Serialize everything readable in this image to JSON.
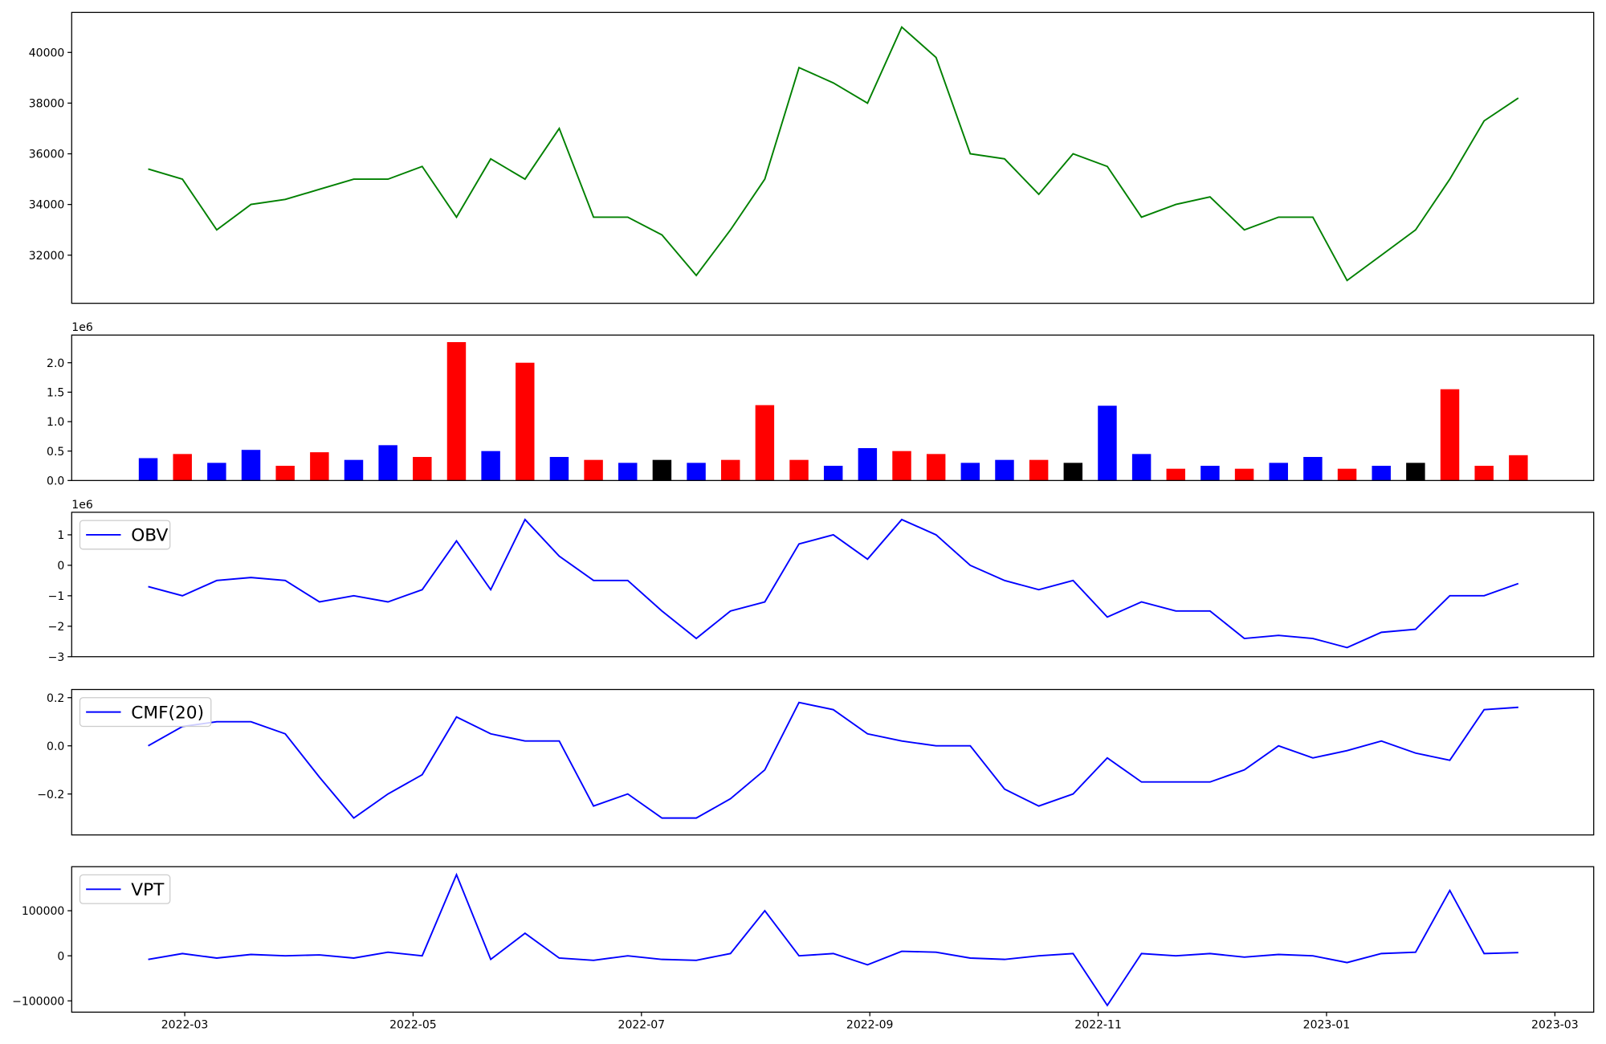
{
  "chart_data": [
    {
      "type": "line",
      "xlim": [
        1.01,
        14.34
      ],
      "ylim": [
        30100,
        41580
      ],
      "yticks": [
        32000,
        34000,
        36000,
        38000,
        40000
      ],
      "x": [
        1.68,
        1.98,
        2.28,
        2.58,
        2.88,
        3.18,
        3.48,
        3.78,
        4.08,
        4.38,
        4.68,
        4.98,
        5.28,
        5.58,
        5.88,
        6.18,
        6.48,
        6.78,
        7.08,
        7.38,
        7.68,
        7.98,
        8.28,
        8.58,
        8.88,
        9.18,
        9.48,
        9.78,
        10.08,
        10.38,
        10.68,
        10.98,
        11.28,
        11.58,
        11.88,
        12.18,
        12.48,
        12.78,
        13.08,
        13.38,
        13.68
      ],
      "series": [
        {
          "color": "green",
          "values": [
            35400,
            35000,
            33000,
            34000,
            34200,
            34600,
            35000,
            35000,
            35500,
            33500,
            35800,
            35000,
            37000,
            33500,
            33500,
            32800,
            31200,
            33000,
            35000,
            39400,
            38800,
            38000,
            41000,
            39800,
            36000,
            35800,
            34400,
            36000,
            35500,
            33500,
            34000,
            34300,
            33000,
            33500,
            33500,
            31000,
            32000,
            33000,
            35000,
            37300,
            38200
          ]
        }
      ]
    },
    {
      "type": "bar",
      "xlim": [
        1.01,
        14.34
      ],
      "ylim": [
        0,
        2.47
      ],
      "offset_label": "1e6",
      "yticks": [
        {
          "value": 0,
          "label": "0.0"
        },
        {
          "value": 0.5,
          "label": "0.5"
        },
        {
          "value": 1,
          "label": "1.0"
        },
        {
          "value": 1.5,
          "label": "1.5"
        },
        {
          "value": 2,
          "label": "2.0"
        }
      ],
      "x": [
        1.68,
        1.98,
        2.28,
        2.58,
        2.88,
        3.18,
        3.48,
        3.78,
        4.08,
        4.38,
        4.68,
        4.98,
        5.28,
        5.58,
        5.88,
        6.18,
        6.48,
        6.78,
        7.08,
        7.38,
        7.68,
        7.98,
        8.28,
        8.58,
        8.88,
        9.18,
        9.48,
        9.78,
        10.08,
        10.38,
        10.68,
        10.98,
        11.28,
        11.58,
        11.88,
        12.18,
        12.48,
        12.78,
        13.08,
        13.38,
        13.68
      ],
      "values": [
        0.38,
        0.45,
        0.3,
        0.52,
        0.25,
        0.48,
        0.35,
        0.6,
        0.4,
        2.35,
        0.5,
        2.0,
        0.4,
        0.35,
        0.3,
        0.35,
        0.3,
        0.35,
        1.28,
        0.35,
        0.25,
        0.55,
        0.5,
        0.45,
        0.3,
        0.35,
        0.35,
        0.3,
        1.27,
        0.45,
        0.2,
        0.25,
        0.2,
        0.3,
        0.4,
        0.2,
        0.25,
        0.3,
        1.55,
        0.25,
        0.43
      ],
      "colors": [
        "blue",
        "red",
        "blue",
        "blue",
        "red",
        "red",
        "blue",
        "blue",
        "red",
        "red",
        "blue",
        "red",
        "blue",
        "red",
        "blue",
        "black",
        "blue",
        "red",
        "red",
        "red",
        "blue",
        "blue",
        "red",
        "red",
        "blue",
        "blue",
        "red",
        "black",
        "blue",
        "blue",
        "red",
        "blue",
        "red",
        "blue",
        "blue",
        "red",
        "blue",
        "black",
        "red",
        "red",
        "red"
      ]
    },
    {
      "type": "line",
      "xlim": [
        1.01,
        14.34
      ],
      "ylim": [
        -3.0,
        1.74
      ],
      "offset_label": "1e6",
      "yticks": [
        {
          "value": -3,
          "label": "−3"
        },
        {
          "value": -2,
          "label": "−2"
        },
        {
          "value": -1,
          "label": "−1"
        },
        0,
        1
      ],
      "legend": "upper left",
      "x": [
        1.68,
        1.98,
        2.28,
        2.58,
        2.88,
        3.18,
        3.48,
        3.78,
        4.08,
        4.38,
        4.68,
        4.98,
        5.28,
        5.58,
        5.88,
        6.18,
        6.48,
        6.78,
        7.08,
        7.38,
        7.68,
        7.98,
        8.28,
        8.58,
        8.88,
        9.18,
        9.48,
        9.78,
        10.08,
        10.38,
        10.68,
        10.98,
        11.28,
        11.58,
        11.88,
        12.18,
        12.48,
        12.78,
        13.08,
        13.38,
        13.68
      ],
      "series": [
        {
          "name": "OBV",
          "color": "blue",
          "values": [
            -0.7,
            -1.0,
            -0.5,
            -0.4,
            -0.5,
            -1.2,
            -1.0,
            -1.2,
            -0.8,
            0.8,
            -0.8,
            1.5,
            0.3,
            -0.5,
            -0.5,
            -1.5,
            -2.4,
            -1.5,
            -1.2,
            0.7,
            1.0,
            0.2,
            1.5,
            1.0,
            0.0,
            -0.5,
            -0.8,
            -0.5,
            -1.7,
            -1.2,
            -1.5,
            -1.5,
            -2.4,
            -2.3,
            -2.4,
            -2.7,
            -2.2,
            -2.1,
            -1.0,
            -1.0,
            -0.6
          ]
        }
      ]
    },
    {
      "type": "line",
      "xlim": [
        1.01,
        14.34
      ],
      "ylim": [
        -0.37,
        0.234
      ],
      "yticks": [
        {
          "value": -0.2,
          "label": "−0.2"
        },
        {
          "value": 0,
          "label": "0.0"
        },
        0.2
      ],
      "legend": "upper left",
      "x": [
        1.68,
        1.98,
        2.28,
        2.58,
        2.88,
        3.18,
        3.48,
        3.78,
        4.08,
        4.38,
        4.68,
        4.98,
        5.28,
        5.58,
        5.88,
        6.18,
        6.48,
        6.78,
        7.08,
        7.38,
        7.68,
        7.98,
        8.28,
        8.58,
        8.88,
        9.18,
        9.48,
        9.78,
        10.08,
        10.38,
        10.68,
        10.98,
        11.28,
        11.58,
        11.88,
        12.18,
        12.48,
        12.78,
        13.08,
        13.38,
        13.68
      ],
      "series": [
        {
          "name": "CMF(20)",
          "color": "blue",
          "values": [
            0.0,
            0.08,
            0.1,
            0.1,
            0.05,
            -0.13,
            -0.3,
            -0.2,
            -0.12,
            0.12,
            0.05,
            0.02,
            0.02,
            -0.25,
            -0.2,
            -0.3,
            -0.3,
            -0.22,
            -0.1,
            0.18,
            0.15,
            0.05,
            0.02,
            0.0,
            0.0,
            -0.18,
            -0.25,
            -0.2,
            -0.05,
            -0.15,
            -0.15,
            -0.15,
            -0.1,
            0.0,
            -0.05,
            -0.02,
            0.02,
            -0.03,
            -0.06,
            0.15,
            0.16
          ]
        }
      ]
    },
    {
      "type": "line",
      "xlim": [
        1.01,
        14.34
      ],
      "ylim": [
        -125000,
        197700
      ],
      "yticks": [
        {
          "value": -100000,
          "label": "−100000"
        },
        0,
        100000
      ],
      "xticks": [
        {
          "value": 2,
          "label": "2022-03"
        },
        {
          "value": 4,
          "label": "2022-05"
        },
        {
          "value": 6,
          "label": "2022-07"
        },
        {
          "value": 8,
          "label": "2022-09"
        },
        {
          "value": 10,
          "label": "2022-11"
        },
        {
          "value": 12,
          "label": "2023-01"
        },
        {
          "value": 14,
          "label": "2023-03"
        }
      ],
      "legend": "upper left",
      "x": [
        1.68,
        1.98,
        2.28,
        2.58,
        2.88,
        3.18,
        3.48,
        3.78,
        4.08,
        4.38,
        4.68,
        4.98,
        5.28,
        5.58,
        5.88,
        6.18,
        6.48,
        6.78,
        7.08,
        7.38,
        7.68,
        7.98,
        8.28,
        8.58,
        8.88,
        9.18,
        9.48,
        9.78,
        10.08,
        10.38,
        10.68,
        10.98,
        11.28,
        11.58,
        11.88,
        12.18,
        12.48,
        12.78,
        13.08,
        13.38,
        13.68
      ],
      "series": [
        {
          "name": "VPT",
          "color": "blue",
          "values": [
            -8000,
            5000,
            -5000,
            3000,
            0,
            2000,
            -5000,
            8000,
            0,
            180000,
            -8000,
            50000,
            -5000,
            -10000,
            0,
            -8000,
            -10000,
            5000,
            100000,
            0,
            5000,
            -20000,
            10000,
            8000,
            -5000,
            -8000,
            0,
            5000,
            -110000,
            5000,
            0,
            5000,
            -3000,
            3000,
            0,
            -15000,
            5000,
            8000,
            145000,
            5000,
            7000
          ]
        }
      ]
    }
  ]
}
